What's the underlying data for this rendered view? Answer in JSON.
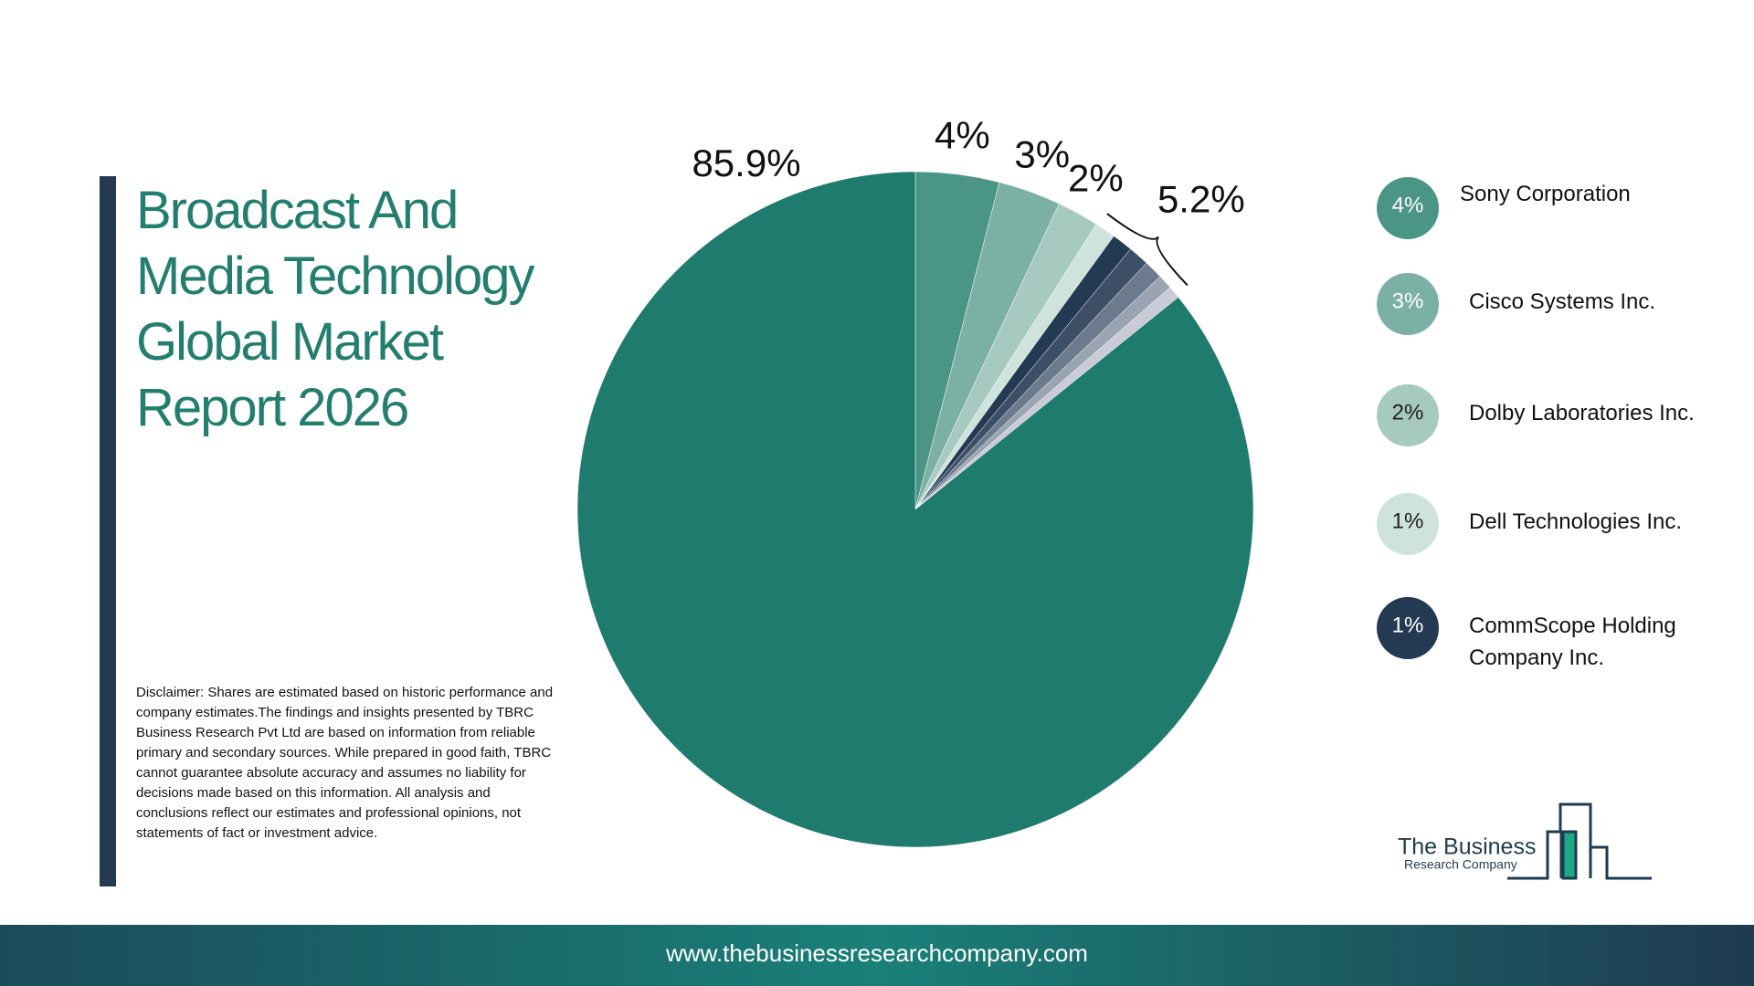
{
  "title": "Broadcast And Media Technology Global Market Report 2026",
  "chart_data": {
    "type": "pie",
    "categories": [
      "Sony Corporation",
      "Cisco Systems Inc.",
      "Dolby Laboratories Inc.",
      "Dell Technologies Inc.",
      "CommScope Holding Company Inc.",
      null,
      null,
      null,
      null,
      null
    ],
    "values": [
      4,
      3,
      2,
      1,
      1,
      1,
      0.9,
      0.7,
      0.6,
      85.9
    ],
    "value_labels": [
      "4%",
      "3%",
      "2%",
      "1%",
      "1%",
      null,
      null,
      null,
      null,
      "85.9%"
    ],
    "colors": [
      "#4a9585",
      "#7bb0a5",
      "#a6c9c0",
      "#cfe3dd",
      "#243a52",
      "#3d4f66",
      "#6b7a8c",
      "#9aa3b1",
      "#c9cbd6",
      "#1f7b6e"
    ],
    "bracket_value": 5.2,
    "bracket_label": "5.2%"
  },
  "disclaimer": "Disclaimer: Shares are estimated based on historic performance and company estimates.The findings and insights presented by TBRC Business Research Pvt Ltd are based on information from reliable primary and secondary sources. While prepared in good faith, TBRC cannot guarantee absolute accuracy and assumes no liability for decisions made based on this information. All analysis and conclusions reflect our estimates and professional opinions, not statements of fact or investment advice.",
  "logo": {
    "line1": "The Business",
    "line2": "Research Company"
  },
  "footer": "www.thebusinessresearchcompany.com"
}
